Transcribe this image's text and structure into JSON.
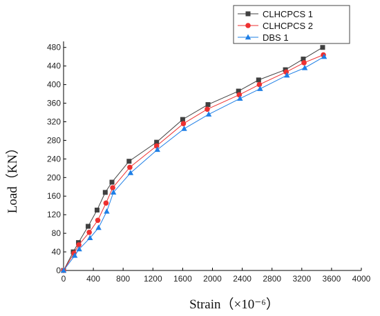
{
  "chart_data": {
    "type": "line",
    "title": "",
    "xlabel": "Strain（×10⁻⁶）",
    "ylabel": "Load（KN）",
    "xlim": [
      0,
      4000
    ],
    "ylim": [
      0,
      490
    ],
    "xticks": [
      0,
      400,
      800,
      1200,
      1600,
      2000,
      2400,
      2800,
      3200,
      3600,
      4000
    ],
    "yticks": [
      0,
      40,
      80,
      120,
      160,
      200,
      240,
      280,
      320,
      360,
      400,
      440,
      480
    ],
    "grid": false,
    "legend_position": "top-right",
    "series": [
      {
        "name": "CLHCPCS 1",
        "color": "#404040",
        "marker": "square",
        "points": [
          [
            0,
            0
          ],
          [
            130,
            40
          ],
          [
            200,
            60
          ],
          [
            330,
            95
          ],
          [
            450,
            130
          ],
          [
            560,
            168
          ],
          [
            650,
            190
          ],
          [
            880,
            235
          ],
          [
            1250,
            276
          ],
          [
            1600,
            325
          ],
          [
            1940,
            357
          ],
          [
            2350,
            386
          ],
          [
            2620,
            410
          ],
          [
            2980,
            432
          ],
          [
            3220,
            455
          ],
          [
            3480,
            480
          ]
        ]
      },
      {
        "name": "CLHCPCS 2",
        "color": "#ee3030",
        "marker": "circle",
        "points": [
          [
            0,
            0
          ],
          [
            140,
            37
          ],
          [
            205,
            55
          ],
          [
            345,
            82
          ],
          [
            460,
            108
          ],
          [
            570,
            145
          ],
          [
            660,
            178
          ],
          [
            890,
            222
          ],
          [
            1250,
            268
          ],
          [
            1610,
            316
          ],
          [
            1930,
            347
          ],
          [
            2360,
            378
          ],
          [
            2630,
            400
          ],
          [
            2990,
            427
          ],
          [
            3230,
            447
          ],
          [
            3490,
            464
          ]
        ]
      },
      {
        "name": "DBS 1",
        "color": "#1e7fe6",
        "marker": "triangle",
        "points": [
          [
            0,
            0
          ],
          [
            150,
            32
          ],
          [
            210,
            46
          ],
          [
            355,
            70
          ],
          [
            470,
            92
          ],
          [
            580,
            127
          ],
          [
            670,
            168
          ],
          [
            900,
            210
          ],
          [
            1260,
            260
          ],
          [
            1620,
            305
          ],
          [
            1950,
            336
          ],
          [
            2370,
            370
          ],
          [
            2640,
            391
          ],
          [
            3000,
            420
          ],
          [
            3240,
            436
          ],
          [
            3500,
            460
          ]
        ]
      }
    ]
  }
}
